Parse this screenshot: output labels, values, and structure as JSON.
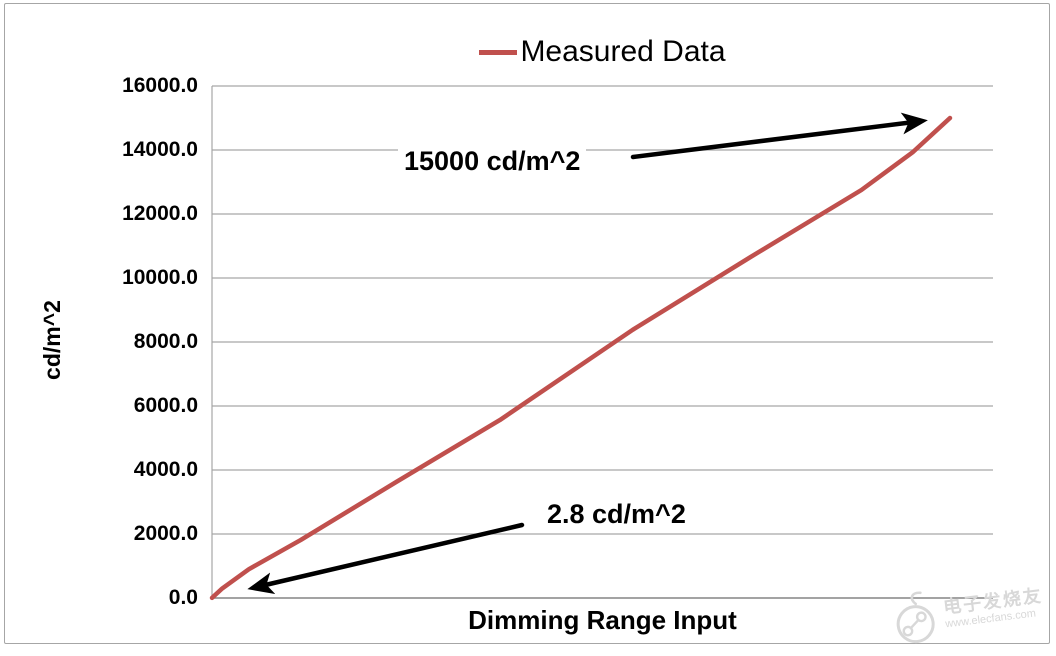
{
  "chart_data": {
    "type": "line",
    "title": "",
    "xlabel": "Dimming Range Input",
    "ylabel": "cd/m^2",
    "xticklabels_shown": false,
    "ylim": [
      0,
      16000
    ],
    "ytick_interval": 2000,
    "ytick_labels": [
      "16000.0",
      "14000.0",
      "12000.0",
      "10000.0",
      "8000.0",
      "6000.0",
      "4000.0",
      "2000.0",
      "0.0"
    ],
    "grid": "horizontal",
    "legend_position": "top-center",
    "series": [
      {
        "name": "Measured Data",
        "color": "#c0504d",
        "x_unit": "dimming range input (fraction of full range; no x tick labels shown)",
        "points": [
          {
            "x": 0.0,
            "y": 2.8
          },
          {
            "x": 0.014,
            "y": 300
          },
          {
            "x": 0.05,
            "y": 900
          },
          {
            "x": 0.12,
            "y": 1810
          },
          {
            "x": 0.25,
            "y": 3630
          },
          {
            "x": 0.39,
            "y": 5560
          },
          {
            "x": 0.57,
            "y": 8380
          },
          {
            "x": 0.73,
            "y": 10660
          },
          {
            "x": 0.88,
            "y": 12750
          },
          {
            "x": 0.95,
            "y": 13940
          },
          {
            "x": 1.0,
            "y": 15000
          }
        ]
      }
    ],
    "annotations": [
      {
        "text": "15000 cd/m^2",
        "points_to": "maximum end of curve"
      },
      {
        "text": "2.8 cd/m^2",
        "points_to": "minimum start of curve"
      }
    ]
  },
  "colors": {
    "series_line": "#c0504d",
    "gridline": "#a6a6a6",
    "axis_line": "#8c8c8c",
    "text": "#000000",
    "arrow": "#000000",
    "frame_border": "#a6a6a6",
    "watermark": "#d8d8d8",
    "background": "#ffffff"
  },
  "watermark": {
    "name": "电子发烧友",
    "url": "www.elecfans.com"
  }
}
